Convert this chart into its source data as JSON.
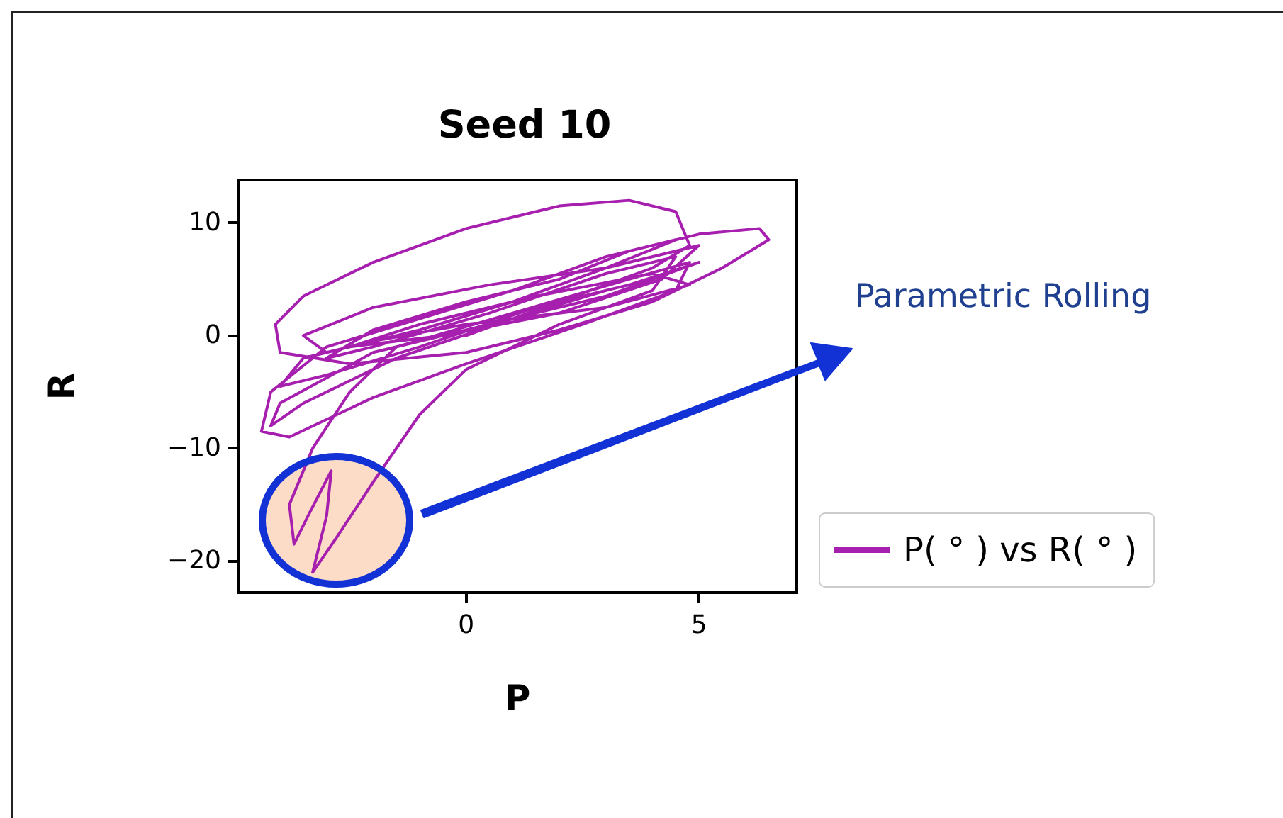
{
  "chart_data": {
    "type": "line",
    "title": "Seed 10",
    "xlabel": "P",
    "ylabel": "R",
    "xlim": [
      -4.9,
      7.1
    ],
    "ylim": [
      -22.8,
      13.8
    ],
    "xticks": [
      0,
      5
    ],
    "yticks": [
      -20,
      -10,
      0,
      10
    ],
    "grid": false,
    "legend": "right",
    "marker": "none",
    "line_style": "solid",
    "annotations": [
      "Parametric Rolling"
    ],
    "series": [
      {
        "name": "P( ° ) vs R( ° )",
        "color": "#a61fae",
        "x": [
          0,
          2,
          4,
          4.8,
          4.5,
          3.5,
          2,
          0,
          -2,
          -3.5,
          -4.1,
          -4,
          -2.5,
          0,
          2,
          4,
          5.5,
          6.5,
          6.3,
          5,
          3,
          1,
          -1,
          -3,
          -4.2,
          -4.4,
          -3.8,
          -2,
          0,
          2.5,
          4.5,
          4.8,
          3.5,
          1,
          -1.5,
          -2.5,
          -3.3,
          -3.8,
          -3.7,
          -3.4,
          -2.9,
          -3,
          -3.3,
          -2.8,
          -2,
          -1,
          0,
          2,
          4,
          4.5,
          3,
          0.5,
          -2,
          -3,
          -2,
          0,
          2,
          3.5,
          4.5,
          3,
          1,
          -1,
          -3,
          -3.5,
          -2,
          0.5,
          3,
          5,
          4.2,
          2,
          -0.5,
          -2.5,
          -1,
          1.5,
          4,
          4.8,
          3,
          0,
          -2,
          -3.5,
          -4,
          -3,
          -1,
          1.5,
          3.5,
          5,
          3,
          0,
          -2,
          -4,
          -4.2,
          -3.5,
          -1.5,
          1,
          3
        ],
        "values": [
          0,
          3,
          6,
          8,
          11,
          12,
          11.5,
          9.5,
          6.5,
          3.5,
          1,
          -1.5,
          -2.5,
          -1.5,
          0.5,
          3,
          6,
          8.5,
          9.5,
          9,
          7,
          4,
          1.5,
          -1,
          -5,
          -8.5,
          -9,
          -5.5,
          -2.5,
          1,
          4,
          6.5,
          5,
          2,
          -1,
          -5,
          -10,
          -15,
          -18.5,
          -16,
          -12,
          -16,
          -21,
          -18,
          -13,
          -7,
          -3,
          1,
          4,
          7,
          5.5,
          2,
          -1,
          -2,
          0.5,
          3,
          5,
          7.5,
          8.5,
          6,
          3,
          0.5,
          -1.5,
          0,
          2.5,
          4.5,
          6,
          8,
          5,
          2,
          0,
          -1,
          1,
          3.5,
          5.5,
          4.5,
          2.5,
          1,
          -0.5,
          -2,
          -4.5,
          -3.5,
          -1,
          2.5,
          4.5,
          6.5,
          3.5,
          0.5,
          -1.5,
          -6,
          -8,
          -6,
          -2,
          1.5,
          4
        ]
      }
    ]
  }
}
